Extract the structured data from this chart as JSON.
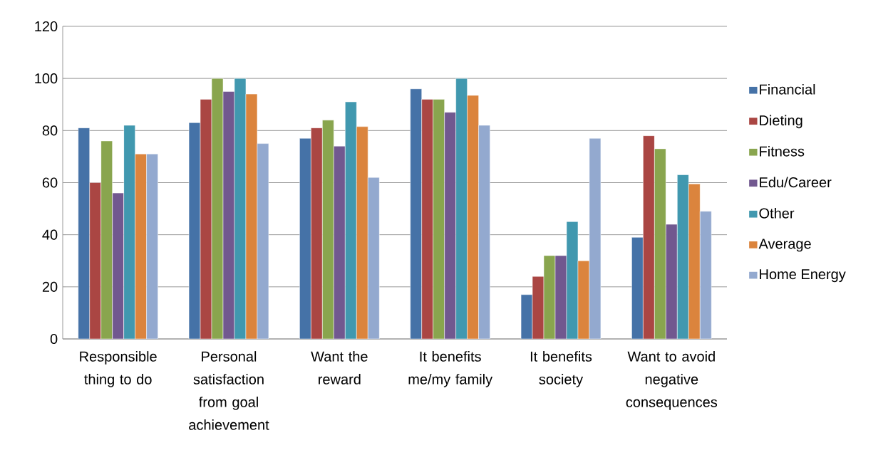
{
  "chart_data": {
    "type": "bar",
    "categories": [
      "Responsible thing to do",
      "Personal satisfaction from goal achievement",
      "Want the reward",
      "It benefits me/my family",
      "It benefits society",
      "Want to avoid negative consequences"
    ],
    "series": [
      {
        "name": "Financial",
        "color": "#4572a7",
        "values": [
          81,
          83,
          77,
          96,
          17,
          39
        ]
      },
      {
        "name": "Dieting",
        "color": "#aa4643",
        "values": [
          60,
          92,
          81,
          92,
          24,
          78
        ]
      },
      {
        "name": "Fitness",
        "color": "#89a54e",
        "values": [
          76,
          100,
          84,
          92,
          32,
          73
        ]
      },
      {
        "name": "Edu/Career",
        "color": "#71588f",
        "values": [
          56,
          95,
          74,
          87,
          32,
          44
        ]
      },
      {
        "name": "Other",
        "color": "#4198af",
        "values": [
          82,
          100,
          91,
          100,
          45,
          63
        ]
      },
      {
        "name": "Average",
        "color": "#db843d",
        "values": [
          71,
          94,
          81.5,
          93.5,
          30,
          59.5
        ]
      },
      {
        "name": "Home Energy",
        "color": "#93a9cf",
        "values": [
          71,
          75,
          62,
          82,
          77,
          49
        ]
      }
    ],
    "ylim": [
      0,
      120
    ],
    "yticks": [
      0,
      20,
      40,
      60,
      80,
      100,
      120
    ],
    "grid": "y",
    "legend": "right"
  }
}
